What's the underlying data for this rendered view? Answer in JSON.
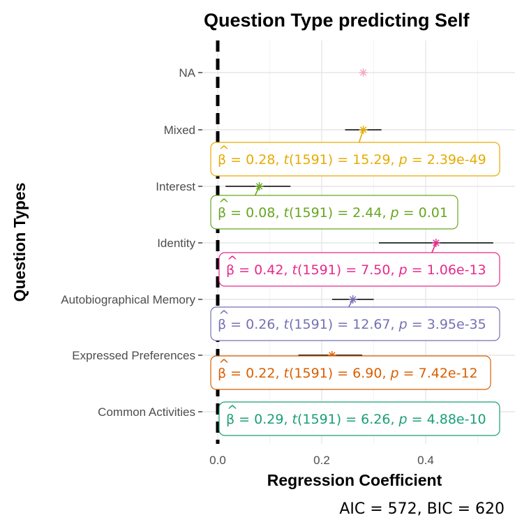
{
  "chart_data": {
    "type": "scatter",
    "title": "Question Type predicting Self",
    "xlabel": "Regression Coefficient",
    "ylabel": "Question Types",
    "xlim": [
      -0.01,
      0.535
    ],
    "x_ticks": [
      0.0,
      0.2,
      0.4
    ],
    "x_tick_labels": [
      "0.0",
      "0.2",
      "0.4"
    ],
    "categories": [
      "NA",
      "Mixed",
      "Interest",
      "Identity",
      "Autobiographical Memory",
      "Expressed Preferences",
      "Common Activities"
    ],
    "grid": true,
    "reference_line": 0,
    "series": [
      {
        "category": "NA",
        "estimate": 0.28,
        "ci": null,
        "color": "#f4a6c6",
        "label": null
      },
      {
        "category": "Mixed",
        "estimate": 0.28,
        "ci": [
          0.245,
          0.315
        ],
        "color": "#E6AB02",
        "label": {
          "beta": "0.28",
          "t": "15.29",
          "p": "2.39e-49",
          "df": "1591"
        }
      },
      {
        "category": "Interest",
        "estimate": 0.08,
        "ci": [
          0.015,
          0.14
        ],
        "color": "#66A61E",
        "label": {
          "beta": "0.08",
          "t": "2.44",
          "p": "0.01",
          "df": "1591"
        }
      },
      {
        "category": "Identity",
        "estimate": 0.42,
        "ci": [
          0.31,
          0.53
        ],
        "color": "#E7298A",
        "label": {
          "beta": "0.42",
          "t": "7.50",
          "p": "1.06e-13",
          "df": "1591"
        }
      },
      {
        "category": "Autobiographical Memory",
        "estimate": 0.26,
        "ci": [
          0.22,
          0.3
        ],
        "color": "#7570B3",
        "label": {
          "beta": "0.26",
          "t": "12.67",
          "p": "3.95e-35",
          "df": "1591"
        }
      },
      {
        "category": "Expressed Preferences",
        "estimate": 0.22,
        "ci": [
          0.155,
          0.278
        ],
        "color": "#D95F02",
        "label": {
          "beta": "0.22",
          "t": "6.90",
          "p": "7.42e-12",
          "df": "1591"
        }
      },
      {
        "category": "Common Activities",
        "estimate": 0.29,
        "ci": null,
        "color": "#1B9E77",
        "label": {
          "beta": "0.29",
          "t": "6.26",
          "p": "4.88e-10",
          "df": "1591"
        }
      }
    ],
    "model_fit": {
      "aic": "572",
      "bic": "620"
    }
  }
}
